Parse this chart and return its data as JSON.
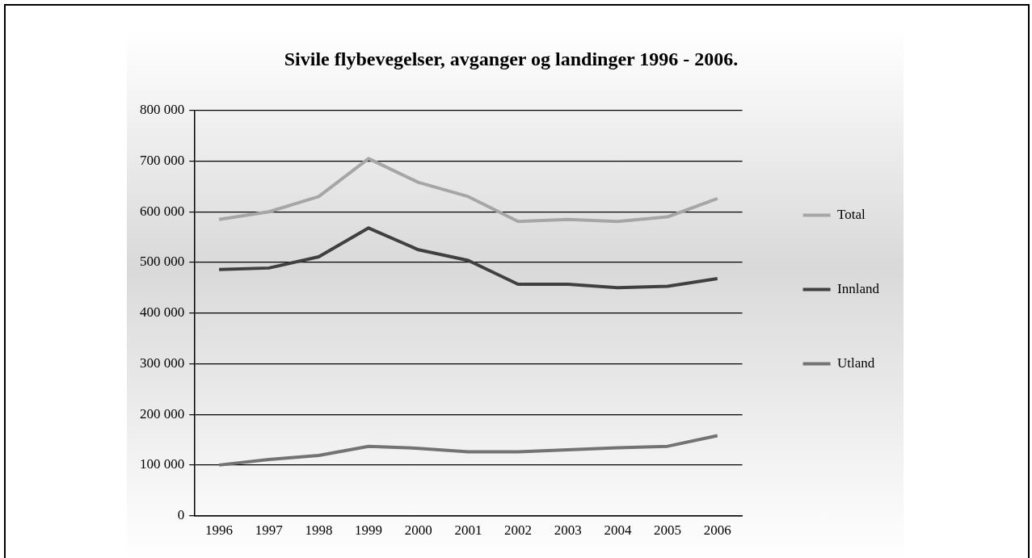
{
  "chart_data": {
    "type": "line",
    "title": "Sivile flybevegelser, avganger og landinger 1996 - 2006.",
    "categories": [
      "1996",
      "1997",
      "1998",
      "1999",
      "2000",
      "2001",
      "2002",
      "2003",
      "2004",
      "2005",
      "2006"
    ],
    "series": [
      {
        "name": "Total",
        "color": "#a6a6a6",
        "values": [
          585000,
          600000,
          630000,
          705000,
          658000,
          630000,
          581000,
          585000,
          581000,
          590000,
          626000
        ]
      },
      {
        "name": "Innland",
        "color": "#404040",
        "values": [
          486000,
          489000,
          511000,
          568000,
          525000,
          504000,
          457000,
          457000,
          450000,
          453000,
          468000
        ]
      },
      {
        "name": "Utland",
        "color": "#737373",
        "values": [
          100000,
          111000,
          119000,
          137000,
          133000,
          126000,
          126000,
          130000,
          134000,
          137000,
          158000
        ]
      }
    ],
    "ylim": [
      0,
      800000
    ],
    "yticks": [
      0,
      {
        "value": 100000,
        "label": "100 000"
      },
      {
        "value": 200000,
        "label": "200 000"
      },
      {
        "value": 300000,
        "label": "300 000"
      },
      {
        "value": 400000,
        "label": "400 000"
      },
      {
        "value": 500000,
        "label": "500 000"
      },
      {
        "value": 600000,
        "label": "600 000"
      },
      {
        "value": 700000,
        "label": "700 000"
      },
      {
        "value": 800000,
        "label": "800 000"
      }
    ],
    "grid": "y",
    "legend": "right",
    "marker": "none",
    "line_style": "solid"
  }
}
